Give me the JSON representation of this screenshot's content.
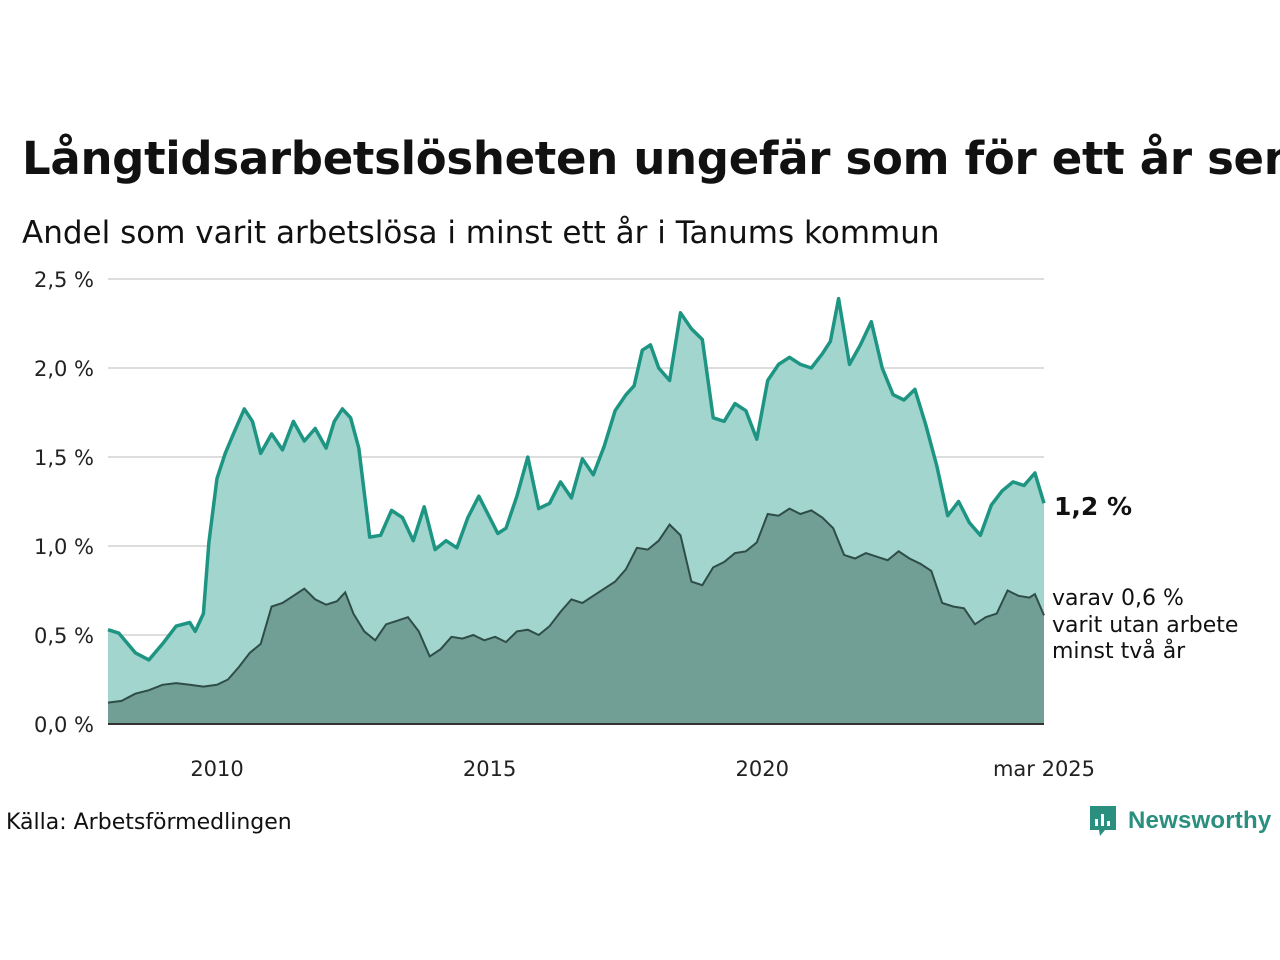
{
  "title": "Långtidsarbetslösheten ungefär som för ett år sen",
  "subtitle": "Andel som varit arbetslösa i minst ett år i Tanums kommun",
  "source": "Källa: Arbetsförmedlingen",
  "brand": {
    "name": "Newsworthy",
    "icon": "newsworthy-logo-icon"
  },
  "colors": {
    "upper_line": "#1e9583",
    "upper_fill": "#a3d5cf",
    "lower_fill": "#719f95",
    "lower_line": "#2e4d47",
    "grid": "#dddddd",
    "axis": "#333333"
  },
  "chart_data": {
    "type": "area",
    "xlabel": "",
    "ylabel": "",
    "ylim": [
      0,
      2.5
    ],
    "yticks": [
      0,
      0.5,
      1.0,
      1.5,
      2.0,
      2.5
    ],
    "ytick_labels": [
      "0,0 %",
      "0,5 %",
      "1,0 %",
      "1,5 %",
      "2,0 %",
      "2,5 %"
    ],
    "xlim": [
      2008.0,
      2025.167
    ],
    "xticks": [
      2010,
      2015,
      2020,
      2025.167
    ],
    "xtick_labels": [
      "2010",
      "2015",
      "2020",
      "mar 2025"
    ],
    "grid": true,
    "end_labels": {
      "main": "1,2 %",
      "sub": [
        "varav 0,6 %",
        "varit utan arbete",
        "minst två år"
      ]
    },
    "series": [
      {
        "key": "minst_ett_ar",
        "x": [
          2008.0,
          2008.2,
          2008.5,
          2008.75,
          2009.0,
          2009.25,
          2009.5,
          2009.6,
          2009.75,
          2009.85,
          2010.0,
          2010.15,
          2010.3,
          2010.5,
          2010.65,
          2010.8,
          2011.0,
          2011.2,
          2011.4,
          2011.6,
          2011.8,
          2012.0,
          2012.15,
          2012.3,
          2012.45,
          2012.6,
          2012.8,
          2013.0,
          2013.2,
          2013.4,
          2013.6,
          2013.8,
          2014.0,
          2014.2,
          2014.4,
          2014.6,
          2014.8,
          2015.0,
          2015.15,
          2015.3,
          2015.5,
          2015.7,
          2015.9,
          2016.1,
          2016.3,
          2016.5,
          2016.7,
          2016.9,
          2017.1,
          2017.3,
          2017.5,
          2017.65,
          2017.8,
          2017.95,
          2018.1,
          2018.3,
          2018.5,
          2018.7,
          2018.9,
          2019.1,
          2019.3,
          2019.5,
          2019.7,
          2019.9,
          2020.1,
          2020.3,
          2020.5,
          2020.7,
          2020.9,
          2021.1,
          2021.25,
          2021.4,
          2021.6,
          2021.8,
          2022.0,
          2022.2,
          2022.4,
          2022.6,
          2022.8,
          2023.0,
          2023.2,
          2023.4,
          2023.6,
          2023.8,
          2024.0,
          2024.2,
          2024.4,
          2024.6,
          2024.8,
          2025.0,
          2025.167
        ],
        "y": [
          0.53,
          0.51,
          0.4,
          0.36,
          0.45,
          0.55,
          0.57,
          0.52,
          0.62,
          1.02,
          1.38,
          1.52,
          1.63,
          1.77,
          1.7,
          1.52,
          1.63,
          1.54,
          1.7,
          1.59,
          1.66,
          1.55,
          1.7,
          1.77,
          1.72,
          1.55,
          1.05,
          1.06,
          1.2,
          1.16,
          1.03,
          1.22,
          0.98,
          1.03,
          0.99,
          1.16,
          1.28,
          1.16,
          1.07,
          1.1,
          1.28,
          1.5,
          1.21,
          1.24,
          1.36,
          1.27,
          1.49,
          1.4,
          1.56,
          1.76,
          1.85,
          1.9,
          2.1,
          2.13,
          2.0,
          1.93,
          2.31,
          2.22,
          2.16,
          1.72,
          1.7,
          1.8,
          1.76,
          1.6,
          1.93,
          2.02,
          2.06,
          2.02,
          2.0,
          2.08,
          2.15,
          2.39,
          2.02,
          2.13,
          2.26,
          2.0,
          1.85,
          1.82,
          1.88,
          1.68,
          1.45,
          1.17,
          1.25,
          1.13,
          1.06,
          1.23,
          1.31,
          1.36,
          1.34,
          1.41,
          1.24
        ]
      },
      {
        "key": "minst_tva_ar",
        "x": [
          2008.0,
          2008.25,
          2008.5,
          2008.75,
          2009.0,
          2009.25,
          2009.5,
          2009.75,
          2010.0,
          2010.2,
          2010.4,
          2010.6,
          2010.8,
          2011.0,
          2011.2,
          2011.4,
          2011.6,
          2011.8,
          2012.0,
          2012.2,
          2012.35,
          2012.5,
          2012.7,
          2012.9,
          2013.1,
          2013.3,
          2013.5,
          2013.7,
          2013.9,
          2014.1,
          2014.3,
          2014.5,
          2014.7,
          2014.9,
          2015.1,
          2015.3,
          2015.5,
          2015.7,
          2015.9,
          2016.1,
          2016.3,
          2016.5,
          2016.7,
          2016.9,
          2017.1,
          2017.3,
          2017.5,
          2017.7,
          2017.9,
          2018.1,
          2018.3,
          2018.5,
          2018.7,
          2018.9,
          2019.1,
          2019.3,
          2019.5,
          2019.7,
          2019.9,
          2020.1,
          2020.3,
          2020.5,
          2020.7,
          2020.9,
          2021.1,
          2021.3,
          2021.5,
          2021.7,
          2021.9,
          2022.1,
          2022.3,
          2022.5,
          2022.7,
          2022.9,
          2023.1,
          2023.3,
          2023.5,
          2023.7,
          2023.9,
          2024.1,
          2024.3,
          2024.5,
          2024.7,
          2024.9,
          2025.0,
          2025.167
        ],
        "y": [
          0.12,
          0.13,
          0.17,
          0.19,
          0.22,
          0.23,
          0.22,
          0.21,
          0.22,
          0.25,
          0.32,
          0.4,
          0.45,
          0.66,
          0.68,
          0.72,
          0.76,
          0.7,
          0.67,
          0.69,
          0.74,
          0.62,
          0.52,
          0.47,
          0.56,
          0.58,
          0.6,
          0.52,
          0.38,
          0.42,
          0.49,
          0.48,
          0.5,
          0.47,
          0.49,
          0.46,
          0.52,
          0.53,
          0.5,
          0.55,
          0.63,
          0.7,
          0.68,
          0.72,
          0.76,
          0.8,
          0.87,
          0.99,
          0.98,
          1.03,
          1.12,
          1.06,
          0.8,
          0.78,
          0.88,
          0.91,
          0.96,
          0.97,
          1.02,
          1.18,
          1.17,
          1.21,
          1.18,
          1.2,
          1.16,
          1.1,
          0.95,
          0.93,
          0.96,
          0.94,
          0.92,
          0.97,
          0.93,
          0.9,
          0.86,
          0.68,
          0.66,
          0.65,
          0.56,
          0.6,
          0.62,
          0.75,
          0.72,
          0.71,
          0.73,
          0.61
        ]
      }
    ]
  }
}
